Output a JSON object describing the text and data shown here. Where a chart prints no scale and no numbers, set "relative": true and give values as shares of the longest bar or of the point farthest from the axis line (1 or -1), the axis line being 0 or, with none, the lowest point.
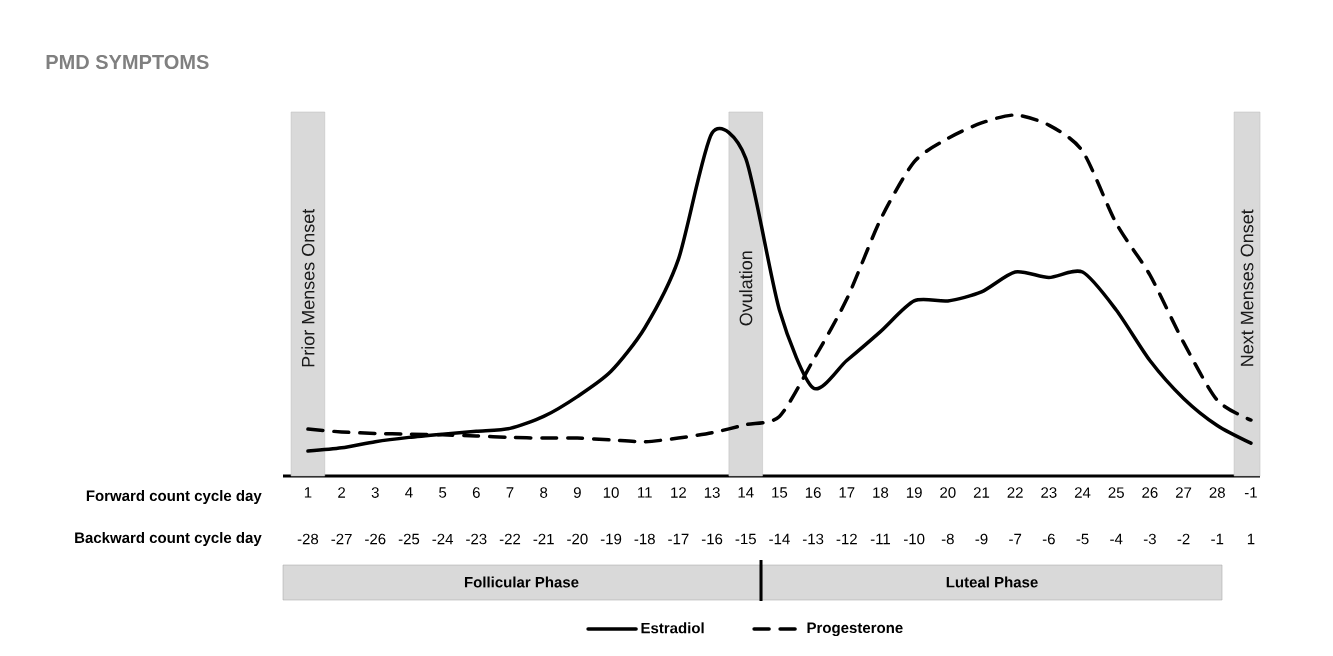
{
  "chart_data": {
    "type": "line",
    "title": "PMD SYMPTOMS",
    "relative": true,
    "xlabel": "Forward count cycle day",
    "categories": [
      "1",
      "2",
      "3",
      "4",
      "5",
      "6",
      "7",
      "8",
      "9",
      "10",
      "11",
      "12",
      "13",
      "14",
      "15",
      "16",
      "17",
      "18",
      "19",
      "20",
      "21",
      "22",
      "23",
      "24",
      "25",
      "26",
      "27",
      "28",
      "-1"
    ],
    "bands": [
      {
        "axis": "x",
        "from": "1",
        "to": "1",
        "label": "Prior Menses Onset",
        "color": "#d9d9d9"
      },
      {
        "axis": "x",
        "from": "14",
        "to": "14",
        "label": "Ovulation",
        "color": "#d9d9d9"
      },
      {
        "axis": "x",
        "from": "-1",
        "to": "-1",
        "label": "Next Menses Onset",
        "color": "#d9d9d9"
      }
    ],
    "series": [
      {
        "name": "Estradiol",
        "color": "#000000",
        "line_style": "solid",
        "values": [
          0.069,
          0.078,
          0.095,
          0.107,
          0.116,
          0.124,
          0.132,
          0.165,
          0.22,
          0.29,
          0.41,
          0.6,
          0.95,
          0.88,
          0.46,
          0.244,
          0.32,
          0.4,
          0.485,
          0.485,
          0.51,
          0.565,
          0.55,
          0.565,
          0.46,
          0.32,
          0.215,
          0.14,
          0.091
        ]
      },
      {
        "name": "Progesterone",
        "color": "#000000",
        "line_style": "dashed",
        "values": [
          0.13,
          0.122,
          0.118,
          0.116,
          0.114,
          0.111,
          0.107,
          0.105,
          0.105,
          0.1,
          0.095,
          0.105,
          0.12,
          0.142,
          0.165,
          0.32,
          0.49,
          0.71,
          0.87,
          0.935,
          0.978,
          1.0,
          0.972,
          0.9,
          0.7,
          0.557,
          0.37,
          0.21,
          0.155
        ]
      }
    ],
    "legend": "bottom",
    "annotations": [
      "Backward count cycle day",
      "-28",
      "-27",
      "-26",
      "-25",
      "-24",
      "-23",
      "-22",
      "-21",
      "-20",
      "-19",
      "-18",
      "-17",
      "-16",
      "-15",
      "-14",
      "-13",
      "-12",
      "-11",
      "-10",
      "-8",
      "-9",
      "-7",
      "-6",
      "-5",
      "-4",
      "-3",
      "-2",
      "-1",
      "1",
      "Follicular Phase",
      "Luteal Phase"
    ]
  }
}
